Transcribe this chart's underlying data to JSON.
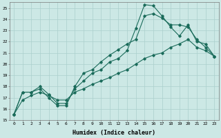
{
  "xlabel": "Humidex (Indice chaleur)",
  "bg_color": "#cce8e5",
  "grid_color": "#aacfcc",
  "line_color": "#1a6b5a",
  "xlim": [
    -0.5,
    23.5
  ],
  "ylim": [
    15,
    25.5
  ],
  "xticks": [
    0,
    1,
    2,
    3,
    4,
    5,
    6,
    7,
    8,
    9,
    10,
    11,
    12,
    13,
    14,
    15,
    16,
    17,
    18,
    19,
    20,
    21,
    22,
    23
  ],
  "yticks": [
    15,
    16,
    17,
    18,
    19,
    20,
    21,
    22,
    23,
    24,
    25
  ],
  "series1_x": [
    0,
    1,
    2,
    3,
    4,
    5,
    6,
    7,
    8,
    9,
    10,
    11,
    12,
    13,
    14,
    15,
    16,
    17,
    18,
    19,
    20,
    21,
    22,
    23
  ],
  "series1_y": [
    15.5,
    17.5,
    17.5,
    18.0,
    17.3,
    16.5,
    16.5,
    17.8,
    18.5,
    19.2,
    19.5,
    20.2,
    20.5,
    21.2,
    23.2,
    25.3,
    25.2,
    24.3,
    23.3,
    22.5,
    23.5,
    22.0,
    21.8,
    20.7
  ],
  "series2_x": [
    0,
    1,
    2,
    3,
    4,
    5,
    6,
    7,
    8,
    9,
    10,
    11,
    12,
    13,
    14,
    15,
    16,
    17,
    18,
    19,
    20,
    21,
    22,
    23
  ],
  "series2_y": [
    15.5,
    17.5,
    17.5,
    17.8,
    17.0,
    16.3,
    16.3,
    18.0,
    19.2,
    19.5,
    20.2,
    20.8,
    21.3,
    21.8,
    22.2,
    24.3,
    24.5,
    24.1,
    23.5,
    23.5,
    23.3,
    22.2,
    21.5,
    20.7
  ],
  "series3_x": [
    0,
    1,
    2,
    3,
    4,
    5,
    6,
    7,
    8,
    9,
    10,
    11,
    12,
    13,
    14,
    15,
    16,
    17,
    18,
    19,
    20,
    21,
    22,
    23
  ],
  "series3_y": [
    15.5,
    16.8,
    17.2,
    17.5,
    17.2,
    16.8,
    16.8,
    17.5,
    17.8,
    18.2,
    18.5,
    18.8,
    19.2,
    19.5,
    20.0,
    20.5,
    20.8,
    21.0,
    21.5,
    21.8,
    22.2,
    21.5,
    21.2,
    20.7
  ]
}
